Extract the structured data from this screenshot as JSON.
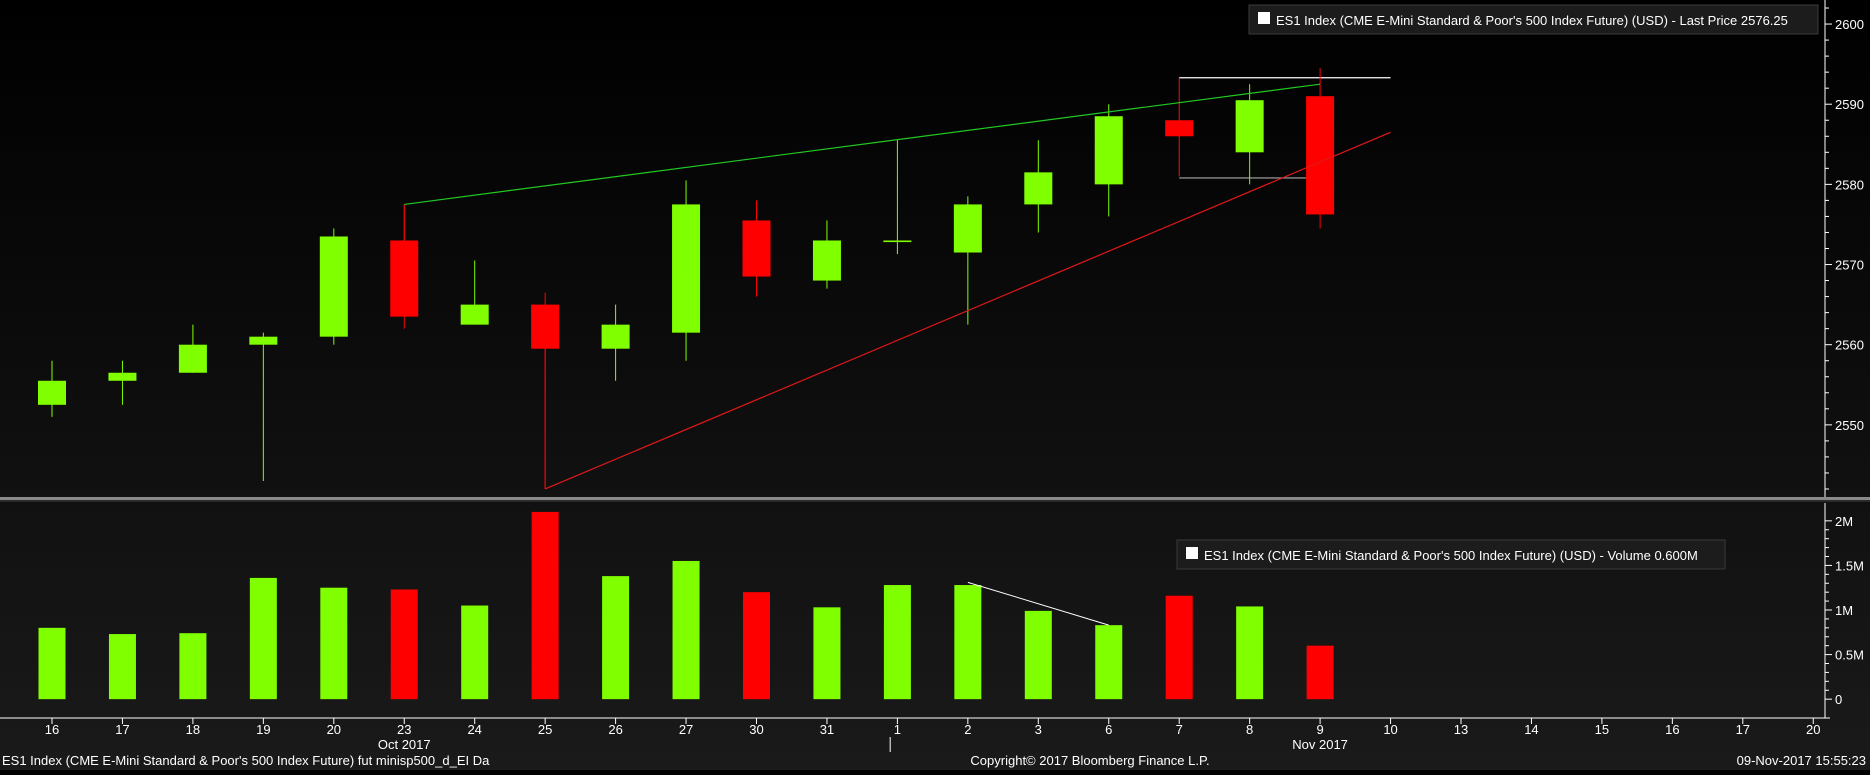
{
  "colors": {
    "background": "#000000",
    "up": "#80ff00",
    "down": "#ff0000",
    "axis": "#ffffff",
    "trend_upper": "#22c922",
    "trend_lower": "#e01818",
    "annotation_white": "#ffffff",
    "annotation_gray": "#8c8c8c",
    "legend_bg": "#1c1c1c"
  },
  "chart_data": [
    {
      "type": "candlestick",
      "legend": "ES1 Index (CME E-Mini Standard & Poor's 500 Index Future) (USD) - Last Price 2576.25",
      "legend_placement": "top-right",
      "ylim": [
        2541,
        2603
      ],
      "yticks": [
        2550,
        2560,
        2570,
        2580,
        2590,
        2600
      ],
      "grid": false,
      "categories": [
        "16",
        "17",
        "18",
        "19",
        "20",
        "23",
        "24",
        "25",
        "26",
        "27",
        "30",
        "31",
        "1",
        "2",
        "3",
        "6",
        "7",
        "8",
        "9",
        "10",
        "13",
        "14",
        "15",
        "16",
        "17",
        "20"
      ],
      "candles": [
        {
          "x": "16",
          "open": 2552.5,
          "high": 2558,
          "low": 2551,
          "close": 2555.5
        },
        {
          "x": "17",
          "open": 2555.5,
          "high": 2558,
          "low": 2552.5,
          "close": 2556.5
        },
        {
          "x": "18",
          "open": 2556.5,
          "high": 2562.5,
          "low": 2556.5,
          "close": 2560
        },
        {
          "x": "19",
          "open": 2560,
          "high": 2561.5,
          "low": 2543,
          "close": 2561
        },
        {
          "x": "20",
          "open": 2561,
          "high": 2574.5,
          "low": 2560,
          "close": 2573.5
        },
        {
          "x": "23",
          "open": 2573,
          "high": 2577.5,
          "low": 2562,
          "close": 2563.5
        },
        {
          "x": "24",
          "open": 2562.5,
          "high": 2570.5,
          "low": 2562.5,
          "close": 2565
        },
        {
          "x": "25",
          "open": 2565,
          "high": 2566.5,
          "low": 2542,
          "close": 2559.5
        },
        {
          "x": "26",
          "open": 2559.5,
          "high": 2565,
          "low": 2555.5,
          "close": 2562.5
        },
        {
          "x": "27",
          "open": 2561.5,
          "high": 2580.5,
          "low": 2558,
          "close": 2577.5
        },
        {
          "x": "30",
          "open": 2575.5,
          "high": 2578,
          "low": 2566,
          "close": 2568.5
        },
        {
          "x": "31",
          "open": 2568,
          "high": 2575.5,
          "low": 2567,
          "close": 2573
        },
        {
          "x": "1",
          "open": 2572.8,
          "high": 2585.5,
          "low": 2571.3,
          "close": 2573
        },
        {
          "x": "2",
          "open": 2571.5,
          "high": 2578.5,
          "low": 2562.5,
          "close": 2577.5
        },
        {
          "x": "3",
          "open": 2577.5,
          "high": 2585.5,
          "low": 2574,
          "close": 2581.5
        },
        {
          "x": "6",
          "open": 2580,
          "high": 2590,
          "low": 2576,
          "close": 2588.5
        },
        {
          "x": "7",
          "open": 2588,
          "high": 2588,
          "low": 2586,
          "close": 2586
        },
        {
          "x": "8",
          "open": 2584,
          "high": 2592.5,
          "low": 2580,
          "close": 2590.5
        },
        {
          "x": "9",
          "open": 2591,
          "high": 2594.5,
          "low": 2574.5,
          "close": 2576.25
        }
      ],
      "trendlines": [
        {
          "from": {
            "x": "23",
            "y": 2577.5
          },
          "to": {
            "x": "9",
            "y": 2592.5
          },
          "color": "trend_upper"
        },
        {
          "from": {
            "x": "25",
            "y": 2542
          },
          "to": {
            "x": "10",
            "y": 2586.5
          },
          "color": "trend_lower"
        }
      ],
      "annotations": [
        {
          "kind": "vline",
          "x": "23",
          "y1": 2577.5,
          "y2": 2573,
          "color": "trend_lower"
        },
        {
          "kind": "vline",
          "x": "25",
          "y1": 2542,
          "y2": 2565,
          "color": "trend_lower"
        },
        {
          "kind": "hline",
          "x1": "7",
          "x2": "10",
          "y": 2593.3,
          "color": "annotation_white"
        },
        {
          "kind": "vline",
          "x": "7",
          "y1": 2593.3,
          "y2": 2581,
          "color": "trend_lower"
        },
        {
          "kind": "hline",
          "x1": "7",
          "x2": "9",
          "y": 2580.8,
          "color": "annotation_gray"
        }
      ]
    },
    {
      "type": "bar",
      "legend": "ES1 Index (CME E-Mini Standard & Poor's 500 Index Future) (USD) - Volume 0.600M",
      "legend_placement": "top-right",
      "ylim": [
        -0.2,
        2.2
      ],
      "yticks": [
        0,
        0.5,
        1,
        1.5,
        2
      ],
      "ytick_labels": [
        "0",
        "0.5M",
        "1M",
        "1.5M",
        "2M"
      ],
      "grid": false,
      "categories": [
        "16",
        "17",
        "18",
        "19",
        "20",
        "23",
        "24",
        "25",
        "26",
        "27",
        "30",
        "31",
        "1",
        "2",
        "3",
        "6",
        "7",
        "8",
        "9"
      ],
      "values": [
        0.8,
        0.73,
        0.74,
        1.36,
        1.25,
        1.23,
        1.05,
        2.1,
        1.38,
        1.55,
        1.2,
        1.03,
        1.28,
        1.28,
        0.99,
        0.83,
        1.16,
        1.04,
        0.6
      ],
      "bar_direction": [
        "up",
        "up",
        "up",
        "up",
        "up",
        "down",
        "up",
        "down",
        "up",
        "up",
        "down",
        "up",
        "up",
        "up",
        "up",
        "up",
        "down",
        "up",
        "down"
      ],
      "trendline": {
        "from": {
          "x": "2",
          "y": 1.31
        },
        "to": {
          "x": "6",
          "y": 0.83
        },
        "color": "annotation_white"
      }
    }
  ],
  "xaxis": {
    "ticks": [
      "16",
      "17",
      "18",
      "19",
      "20",
      "23",
      "24",
      "25",
      "26",
      "27",
      "30",
      "31",
      "1",
      "2",
      "3",
      "6",
      "7",
      "8",
      "9",
      "10",
      "13",
      "14",
      "15",
      "16",
      "17",
      "20"
    ],
    "month_labels": [
      {
        "x": "23",
        "label": "Oct 2017"
      },
      {
        "x": "9",
        "label": "Nov 2017"
      }
    ]
  },
  "footer": {
    "left": "ES1 Index (CME E-Mini Standard & Poor's 500 Index Future) fut minisp500_d_EI  Da",
    "center": "Copyright© 2017 Bloomberg Finance L.P.",
    "right": "09-Nov-2017 15:55:23"
  }
}
